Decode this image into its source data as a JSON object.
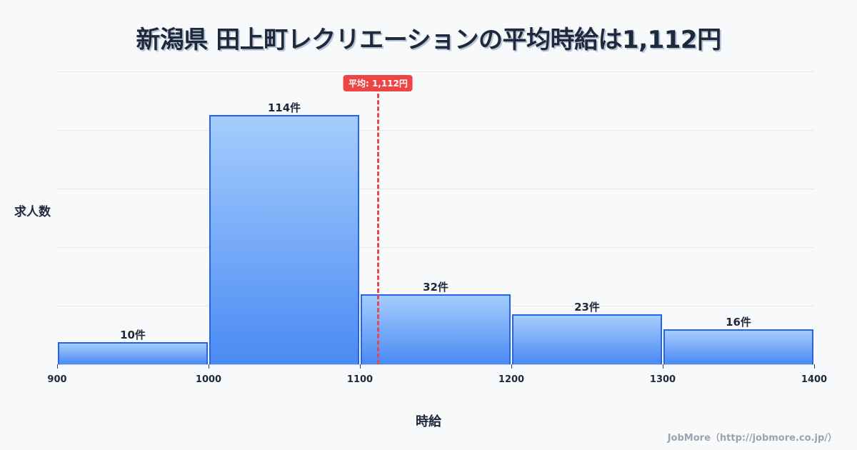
{
  "title": "新潟県 田上町レクリエーションの平均時給は1,112円",
  "axis": {
    "ylabel": "求人数",
    "xlabel": "時給"
  },
  "mean": {
    "label": "平均: 1,112円",
    "value": 1112,
    "color": "#ef4444"
  },
  "credit": "JobMore（http://jobmore.co.jp/）",
  "colors": {
    "bar_top": "#a5cdfc",
    "bar_bottom": "#4a8af4",
    "bar_border": "#2563eb",
    "text": "#1e293b",
    "grid": "#e3e7ee"
  },
  "chart_data": {
    "type": "bar",
    "title": "新潟県 田上町レクリエーションの平均時給は1,112円",
    "xlabel": "時給",
    "ylabel": "求人数",
    "bins": [
      [
        900,
        1000
      ],
      [
        1000,
        1100
      ],
      [
        1100,
        1200
      ],
      [
        1200,
        1300
      ],
      [
        1300,
        1400
      ]
    ],
    "categories": [
      "900-1000",
      "1000-1100",
      "1100-1200",
      "1200-1300",
      "1300-1400"
    ],
    "values": [
      10,
      114,
      32,
      23,
      16
    ],
    "data_labels": [
      "10件",
      "114件",
      "32件",
      "23件",
      "16件"
    ],
    "xticks": [
      "900",
      "1000",
      "1100",
      "1200",
      "1300",
      "1400"
    ],
    "xlim": [
      900,
      1400
    ],
    "ylim": [
      0,
      134
    ],
    "grid": true,
    "annotations": [
      {
        "type": "vline",
        "x": 1112,
        "label": "平均: 1,112円",
        "style": "dashed",
        "color": "#ef4444"
      }
    ]
  }
}
